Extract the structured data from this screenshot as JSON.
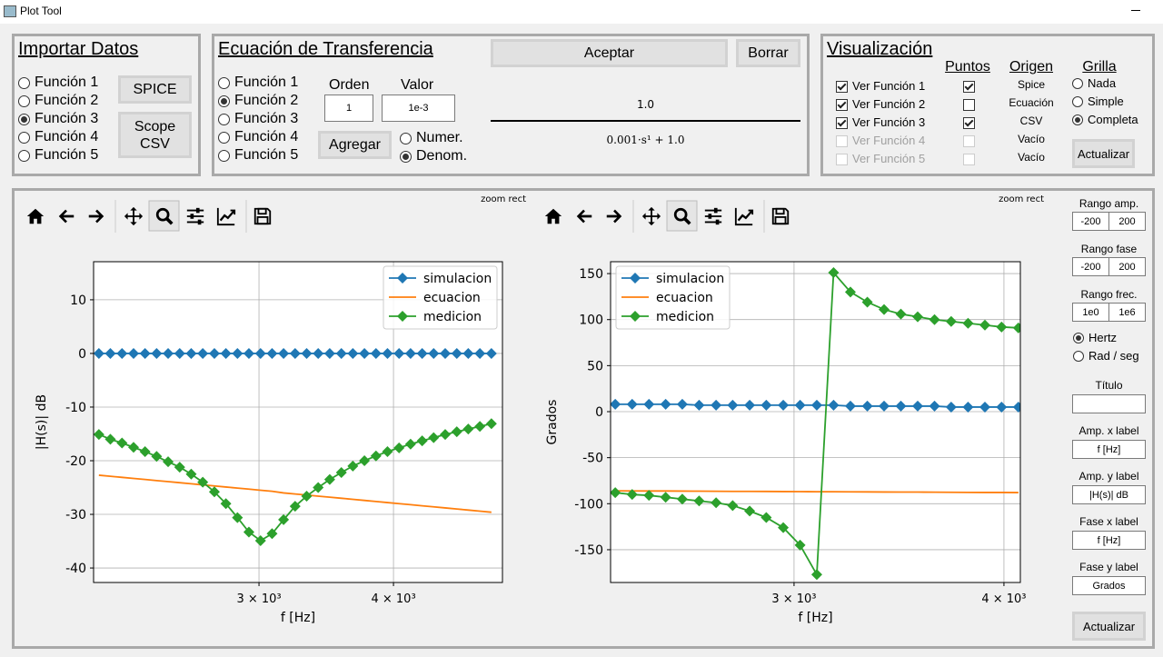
{
  "window": {
    "title": "Plot Tool"
  },
  "import_panel": {
    "title": "Importar Datos",
    "options": [
      "Función 1",
      "Función 2",
      "Función 3",
      "Función 4",
      "Función 5"
    ],
    "selected": 2,
    "spice_button": "SPICE",
    "scope_button": "Scope\nCSV"
  },
  "transfer_panel": {
    "title": "Ecuación de Transferencia",
    "options": [
      "Función 1",
      "Función 2",
      "Función 3",
      "Función 4",
      "Función 5"
    ],
    "selected": 1,
    "order_label": "Orden",
    "order_value": "1",
    "value_label": "Valor",
    "value_value": "1e-3",
    "add_button": "Agregar",
    "target_options": [
      "Numer.",
      "Denom."
    ],
    "target_selected": 1,
    "accept_button": "Aceptar",
    "clear_button": "Borrar",
    "numerator": "1.0",
    "denominator": "0.001·s¹ + 1.0"
  },
  "view_panel": {
    "title": "Visualización",
    "points_header": "Puntos",
    "origin_header": "Origen",
    "grid_header": "Grilla",
    "rows": [
      {
        "label": "Ver Función 1",
        "visible": true,
        "points": true,
        "origin": "Spice",
        "enabled": true
      },
      {
        "label": "Ver Función 2",
        "visible": true,
        "points": false,
        "origin": "Ecuación",
        "enabled": true
      },
      {
        "label": "Ver Función 3",
        "visible": true,
        "points": true,
        "origin": "CSV",
        "enabled": true
      },
      {
        "label": "Ver Función 4",
        "visible": false,
        "points": false,
        "origin": "Vacío",
        "enabled": false
      },
      {
        "label": "Ver Función 5",
        "visible": false,
        "points": false,
        "origin": "Vacío",
        "enabled": false
      }
    ],
    "grid_options": [
      "Nada",
      "Simple",
      "Completa"
    ],
    "grid_selected": 2,
    "update_button": "Actualizar"
  },
  "plot_panel": {
    "toolbar_status": "zoom rect",
    "amp_range": {
      "label": "Rango amp.",
      "min": "-200",
      "max": "200"
    },
    "phase_range": {
      "label": "Rango fase",
      "min": "-200",
      "max": "200"
    },
    "freq_range": {
      "label": "Rango frec.",
      "min": "1e0",
      "max": "1e6"
    },
    "units": [
      "Hertz",
      "Rad / seg"
    ],
    "units_selected": 0,
    "title_label": "Título",
    "amp_x": {
      "label": "Amp. x label",
      "value": "f [Hz]"
    },
    "amp_y": {
      "label": "Amp. y label",
      "value": "|H(s)| dB"
    },
    "phase_x": {
      "label": "Fase x label",
      "value": "f [Hz]"
    },
    "phase_y": {
      "label": "Fase y label",
      "value": "Grados"
    },
    "update_button": "Actualizar"
  },
  "chart_data": [
    {
      "type": "line",
      "xlabel": "f [Hz]",
      "ylabel": "|H(s)| dB",
      "log_x": true,
      "grid": true,
      "legend": "upper right",
      "x": [
        2130,
        2183,
        2238,
        2294,
        2351,
        2410,
        2470,
        2532,
        2595,
        2660,
        2727,
        2795,
        2865,
        2936,
        3010,
        3085,
        3162,
        3241,
        3322,
        3405,
        3490,
        3578,
        3667,
        3759,
        3853,
        3949,
        4048,
        4149,
        4253,
        4359,
        4468,
        4580,
        4694,
        4812,
        4932
      ],
      "xlim": [
        2106,
        5050
      ],
      "xticks": [
        {
          "value": 3000,
          "label": "3 × 10³"
        },
        {
          "value": 4000,
          "label": "4 × 10³"
        }
      ],
      "ylim": [
        -42.7,
        17.1
      ],
      "yticks": [
        -40,
        -30,
        -20,
        -10,
        0,
        10
      ],
      "series": [
        {
          "name": "simulacion",
          "color": "#1f77b4",
          "marker": "diamond",
          "values": [
            0,
            0,
            0,
            0,
            0,
            0,
            0,
            0,
            0,
            0,
            0,
            0,
            0,
            0,
            0,
            0,
            0,
            0,
            0,
            0,
            0,
            0,
            0,
            0,
            0,
            0,
            0,
            0,
            0,
            0,
            0,
            0,
            0,
            0,
            0
          ]
        },
        {
          "name": "ecuacion",
          "color": "#ff7f0e",
          "values": [
            -22.7,
            -22.9,
            -23.1,
            -23.3,
            -23.5,
            -23.7,
            -23.9,
            -24.1,
            -24.3,
            -24.5,
            -24.7,
            -24.9,
            -25.1,
            -25.3,
            -25.5,
            -25.7,
            -26.0,
            -26.2,
            -26.4,
            -26.6,
            -26.8,
            -27.0,
            -27.2,
            -27.4,
            -27.6,
            -27.8,
            -28.0,
            -28.2,
            -28.4,
            -28.6,
            -28.8,
            -29.0,
            -29.2,
            -29.4,
            -29.6
          ]
        },
        {
          "name": "medicion",
          "color": "#2ca02c",
          "marker": "diamond",
          "values": [
            -15.1,
            -16.0,
            -16.7,
            -17.5,
            -18.3,
            -19.2,
            -20.2,
            -21.2,
            -22.5,
            -24.0,
            -25.8,
            -28.0,
            -30.6,
            -33.3,
            -34.9,
            -33.6,
            -31.0,
            -28.5,
            -26.6,
            -25.0,
            -23.5,
            -22.2,
            -21.0,
            -20.0,
            -19.1,
            -18.3,
            -17.6,
            -16.9,
            -16.3,
            -15.7,
            -15.1,
            -14.6,
            -14.1,
            -13.6,
            -13.1
          ]
        }
      ]
    },
    {
      "type": "line",
      "xlabel": "f [Hz]",
      "ylabel": "Grados",
      "log_x": true,
      "grid": true,
      "legend": "upper left",
      "x": [
        2348,
        2403,
        2459,
        2516,
        2574,
        2634,
        2696,
        2758,
        2823,
        2888,
        2956,
        3025,
        3095,
        3167,
        3241,
        3317,
        3394,
        3473,
        3554,
        3637,
        3721,
        3808,
        3897,
        3987,
        4080
      ],
      "xlim": [
        2333,
        4091
      ],
      "xticks": [
        {
          "value": 3000,
          "label": "3 × 10³"
        },
        {
          "value": 4000,
          "label": "4 × 10³"
        }
      ],
      "ylim": [
        -185.6,
        162.9
      ],
      "yticks": [
        -150,
        -100,
        -50,
        0,
        50,
        100,
        150
      ],
      "series": [
        {
          "name": "simulacion",
          "color": "#1f77b4",
          "marker": "diamond",
          "values": [
            8,
            8,
            8,
            8,
            8,
            7,
            7,
            7,
            7,
            7,
            7,
            7,
            7,
            7,
            6,
            6,
            6,
            6,
            6,
            6,
            5,
            5,
            5,
            5,
            5
          ]
        },
        {
          "name": "ecuacion",
          "color": "#ff7f0e",
          "values": [
            -86.0,
            -86.1,
            -86.2,
            -86.2,
            -86.3,
            -86.4,
            -86.5,
            -86.6,
            -86.6,
            -86.7,
            -86.8,
            -86.9,
            -87.0,
            -87.0,
            -87.1,
            -87.2,
            -87.3,
            -87.4,
            -87.4,
            -87.5,
            -87.6,
            -87.7,
            -87.8,
            -87.8,
            -87.9
          ]
        },
        {
          "name": "medicion",
          "color": "#2ca02c",
          "marker": "diamond",
          "values": [
            -88,
            -90,
            -91,
            -93,
            -95,
            -97,
            -99,
            -102,
            -108,
            -115,
            -126,
            -145,
            -177,
            151,
            130,
            119,
            111,
            106,
            103,
            100,
            98,
            96,
            94,
            92,
            91
          ]
        }
      ]
    }
  ]
}
